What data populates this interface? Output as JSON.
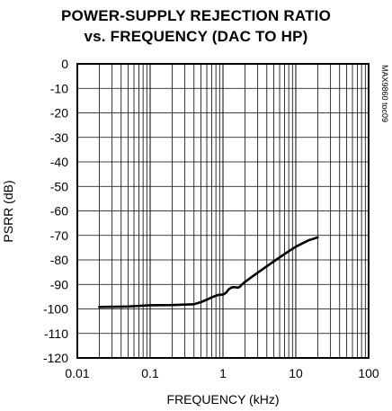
{
  "chart_data": {
    "type": "line",
    "title_lines": [
      "POWER-SUPPLY REJECTION RATIO",
      "vs. FREQUENCY (DAC TO HP)"
    ],
    "xlabel": "FREQUENCY (kHz)",
    "ylabel": "PSRR (dB)",
    "x_scale": "log",
    "xlim": [
      0.01,
      100
    ],
    "ylim": [
      -120,
      0
    ],
    "x_ticks": [
      0.01,
      0.1,
      1,
      10,
      100
    ],
    "x_tick_labels": [
      "0.01",
      "0.1",
      "1",
      "10",
      "100"
    ],
    "y_ticks": [
      0,
      -10,
      -20,
      -30,
      -40,
      -50,
      -60,
      -70,
      -80,
      -90,
      -100,
      -110,
      -120
    ],
    "y_tick_labels": [
      "0",
      "-10",
      "-20",
      "-30",
      "-40",
      "-50",
      "-60",
      "-70",
      "-80",
      "-90",
      "-100",
      "-110",
      "-120"
    ],
    "grid": true,
    "annotation": "MAX9860 toc09",
    "series": [
      {
        "x": [
          0.02,
          0.05,
          0.1,
          0.2,
          0.4,
          0.5,
          0.6,
          0.7,
          0.8,
          0.9,
          1.0,
          1.1,
          1.2,
          1.3,
          1.4,
          1.5,
          1.6,
          1.7,
          1.8,
          2.0,
          2.5,
          3.0,
          4.0,
          5.0,
          7.0,
          10.0,
          15.0,
          20.0
        ],
        "y": [
          -99.2,
          -99.0,
          -98.5,
          -98.4,
          -98.1,
          -97.2,
          -96.2,
          -95.3,
          -94.6,
          -94.2,
          -94.2,
          -93.4,
          -92.0,
          -91.3,
          -91.1,
          -91.2,
          -91.3,
          -91.0,
          -90.2,
          -89.0,
          -86.9,
          -85.2,
          -82.6,
          -80.6,
          -77.6,
          -74.6,
          -72.0,
          -70.8
        ]
      }
    ],
    "colors": {
      "line": "#000000",
      "grid": "#000000",
      "background": "#ffffff"
    }
  }
}
